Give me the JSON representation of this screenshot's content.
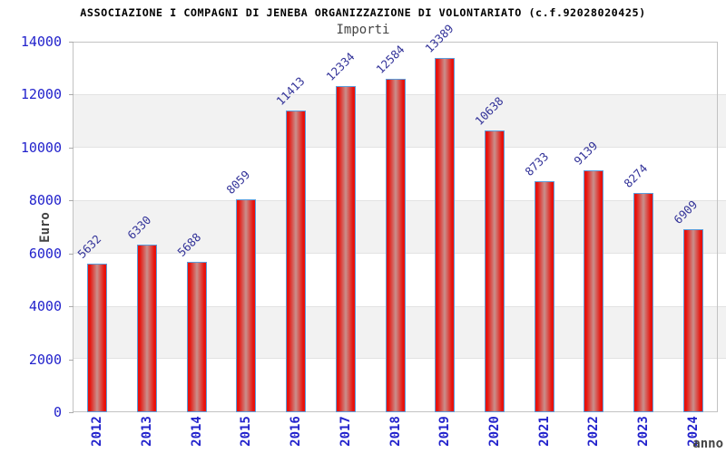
{
  "chart_data": {
    "type": "bar",
    "title": "ASSOCIAZIONE I COMPAGNI DI JENEBA ORGANIZZAZIONE DI VOLONTARIATO (c.f.92028020425)",
    "subtitle": "Importi",
    "xlabel": "anno",
    "ylabel": "Euro",
    "categories": [
      "2012",
      "2013",
      "2014",
      "2015",
      "2016",
      "2017",
      "2018",
      "2019",
      "2020",
      "2021",
      "2022",
      "2023",
      "2024"
    ],
    "values": [
      5632,
      6330,
      5688,
      8059,
      11413,
      12334,
      12584,
      13389,
      10638,
      8733,
      9139,
      8274,
      6909
    ],
    "ylim": [
      0,
      14000
    ],
    "yticks": [
      0,
      2000,
      4000,
      6000,
      8000,
      10000,
      12000,
      14000
    ],
    "grid": "alternating-horizontal-bands",
    "legend": "none",
    "colors": {
      "bar_edge_blue": "#5b9ddb",
      "bar_red": "#e8120c",
      "bar_center_light": "#c9908c",
      "band_gray": "#f2f2f2",
      "tick_label_blue": "#2323cc",
      "value_label_navy": "#333399",
      "axis_text_gray": "#444444",
      "plot_border": "#c2c2c2"
    }
  }
}
